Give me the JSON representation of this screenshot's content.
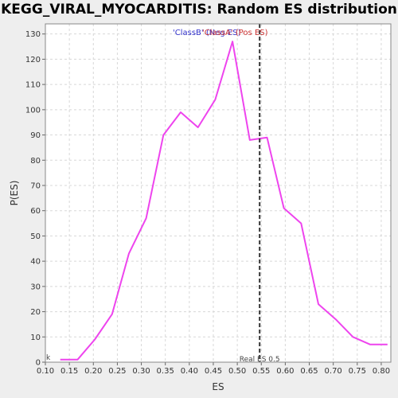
{
  "chart_data": {
    "type": "line",
    "title": "KEGG_VIRAL_MYOCARDITIS: Random ES distribution",
    "xlabel": "ES",
    "ylabel": "P(ES)",
    "xlim": [
      0.1,
      0.82
    ],
    "ylim": [
      0,
      134
    ],
    "x_ticks": [
      "0.10",
      "0.15",
      "0.20",
      "0.25",
      "0.30",
      "0.35",
      "0.40",
      "0.45",
      "0.50",
      "0.55",
      "0.60",
      "0.65",
      "0.70",
      "0.75",
      "0.80"
    ],
    "y_ticks": [
      "0",
      "10",
      "20",
      "30",
      "40",
      "50",
      "60",
      "70",
      "80",
      "90",
      "100",
      "110",
      "120",
      "130"
    ],
    "grid": true,
    "legend": [
      "'ClassB' (Neg ES)",
      "'ClassA' (Pos ES)"
    ],
    "series": [
      {
        "color": "#ee44ee",
        "x": [
          0.131,
          0.167,
          0.203,
          0.239,
          0.274,
          0.31,
          0.346,
          0.382,
          0.418,
          0.454,
          0.49,
          0.526,
          0.562,
          0.597,
          0.633,
          0.669,
          0.705,
          0.741,
          0.777,
          0.813
        ],
        "y": [
          1,
          1,
          9,
          19,
          43,
          57,
          90,
          99,
          93,
          104,
          127,
          88,
          89,
          61,
          55,
          23,
          17,
          10,
          7,
          7
        ]
      }
    ],
    "marker": {
      "x": 0.5466,
      "label": "Real ES 0.5",
      "color": "#333333"
    },
    "corner_label": "k",
    "legend_colors": [
      "#3333cc",
      "#cc3333"
    ]
  }
}
